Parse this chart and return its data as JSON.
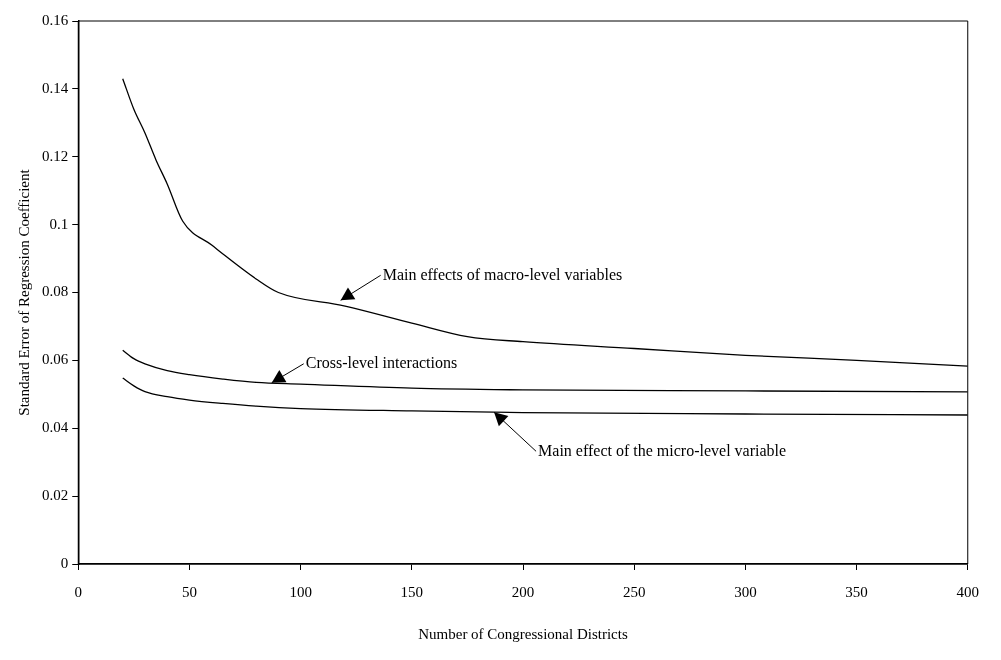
{
  "chart_data": {
    "type": "line",
    "xlabel": "Number of Congressional Districts",
    "ylabel": "Standard Error of Regression Coefficient",
    "xlim": [
      0,
      400
    ],
    "xticks": [
      0,
      50,
      100,
      150,
      200,
      250,
      300,
      350,
      400
    ],
    "ylim": [
      0,
      0.16
    ],
    "yticks": [
      0,
      0.02,
      0.04,
      0.06,
      0.08,
      0.1,
      0.12,
      0.14,
      0.16
    ],
    "grid": false,
    "legend": false,
    "marker": "none",
    "line_style": "solid",
    "series": [
      {
        "color": "#000000",
        "x": [
          20,
          25,
          30,
          35,
          40,
          47,
          60,
          80,
          90,
          120,
          150,
          175,
          200,
          250,
          300,
          350,
          400
        ],
        "values": [
          0.143,
          0.134,
          0.127,
          0.119,
          0.112,
          0.101,
          0.094,
          0.084,
          0.08,
          0.076,
          0.071,
          0.067,
          0.0655,
          0.0635,
          0.0615,
          0.06,
          0.0583
        ]
      },
      {
        "color": "#000000",
        "x": [
          20,
          25,
          30,
          40,
          50,
          65,
          80,
          100,
          150,
          200,
          300,
          400
        ],
        "values": [
          0.063,
          0.0605,
          0.059,
          0.057,
          0.0558,
          0.0545,
          0.0535,
          0.053,
          0.0518,
          0.0513,
          0.051,
          0.0507
        ]
      },
      {
        "color": "#000000",
        "x": [
          20,
          25,
          30,
          40,
          50,
          65,
          80,
          100,
          150,
          200,
          300,
          400
        ],
        "values": [
          0.0548,
          0.0525,
          0.0508,
          0.0493,
          0.0483,
          0.0473,
          0.0465,
          0.0458,
          0.0451,
          0.0446,
          0.0442,
          0.0439
        ]
      }
    ],
    "annotations": [
      {
        "text": "Main effects of macro-level variables",
        "x": 118,
        "y": 0.0777
      },
      {
        "text": "Cross-level interactions",
        "x": 87,
        "y": 0.0534
      },
      {
        "text": "Main effect of the micro-level variable",
        "x": 187,
        "y": 0.0447
      }
    ]
  }
}
